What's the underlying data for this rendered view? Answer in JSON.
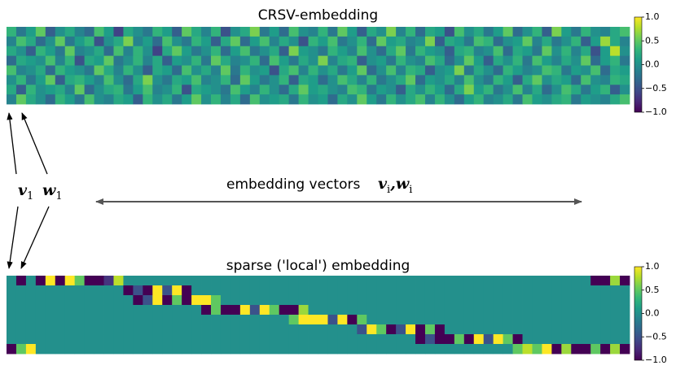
{
  "chart_data": [
    {
      "type": "heatmap",
      "title": "CRSV-embedding",
      "vlim": [
        -1,
        1
      ],
      "colormap": "viridis",
      "colorbar_ticks": [
        {
          "value": 1,
          "label": "1.0"
        },
        {
          "value": 0.5,
          "label": "0.5"
        },
        {
          "value": 0,
          "label": "0.0"
        },
        {
          "value": -0.5,
          "label": "−0.5"
        },
        {
          "value": -1,
          "label": "−1.0"
        }
      ],
      "values": [
        [
          0.3,
          -0.2,
          0.1,
          0.5,
          -0.4,
          0.0,
          0.2,
          -0.1,
          -0.3,
          0.4,
          0.1,
          -0.6,
          0.2,
          0.0,
          -0.2,
          0.3,
          0.1,
          -0.4,
          0.5,
          0.2,
          -0.1,
          0.3,
          -0.5,
          0.0,
          0.2,
          0.6,
          -0.2,
          0.1,
          -0.3,
          0.4,
          0.0,
          -0.1,
          0.3,
          -0.2,
          0.5,
          0.1,
          -0.4,
          0.2,
          0.0,
          0.6,
          -0.1,
          0.3,
          -0.3,
          0.2,
          0.1,
          -0.5,
          0.4,
          0.0,
          0.2,
          -0.2,
          0.1,
          0.5,
          -0.3,
          0.0,
          0.3,
          -0.4,
          0.6,
          0.1,
          -0.2,
          0.3,
          0.0,
          -0.1,
          0.2,
          0.4
        ],
        [
          -0.1,
          0.4,
          0.2,
          -0.3,
          0.0,
          0.5,
          -0.2,
          0.1,
          0.3,
          -0.5,
          0.0,
          0.2,
          0.6,
          -0.1,
          0.1,
          -0.3,
          0.4,
          0.0,
          -0.2,
          0.3,
          0.1,
          -0.4,
          0.2,
          0.5,
          -0.3,
          0.1,
          0.4,
          -0.1,
          0.2,
          0.0,
          -0.5,
          0.3,
          0.1,
          0.4,
          -0.2,
          0.0,
          0.3,
          -0.3,
          0.5,
          0.1,
          0.2,
          -0.1,
          0.0,
          0.6,
          -0.4,
          0.2,
          0.1,
          -0.2,
          0.4,
          0.3,
          -0.3,
          0.0,
          0.1,
          0.5,
          -0.1,
          0.2,
          -0.2,
          0.0,
          0.3,
          -0.4,
          0.1,
          0.7,
          0.2,
          -0.1
        ],
        [
          0.2,
          0.0,
          -0.4,
          0.3,
          0.1,
          -0.2,
          0.5,
          -0.1,
          0.0,
          0.2,
          -0.3,
          0.4,
          -0.1,
          0.3,
          0.0,
          -0.6,
          0.2,
          0.5,
          0.1,
          -0.2,
          0.0,
          0.3,
          -0.3,
          0.1,
          0.4,
          -0.2,
          0.0,
          0.2,
          -0.4,
          0.6,
          0.1,
          0.0,
          -0.2,
          0.3,
          0.1,
          -0.1,
          0.4,
          0.0,
          -0.3,
          0.2,
          0.5,
          -0.2,
          0.3,
          0.1,
          0.0,
          -0.4,
          0.2,
          0.3,
          -0.1,
          0.0,
          0.4,
          -0.3,
          0.2,
          0.1,
          -0.2,
          0.5,
          0.0,
          0.3,
          -0.1,
          0.2,
          -0.5,
          0.1,
          0.8,
          0.0
        ],
        [
          -0.3,
          0.2,
          0.1,
          0.0,
          0.4,
          -0.1,
          0.3,
          -0.5,
          0.2,
          0.1,
          0.5,
          -0.2,
          0.0,
          0.3,
          -0.1,
          0.2,
          -0.4,
          0.1,
          0.0,
          0.3,
          -0.2,
          0.5,
          0.2,
          -0.1,
          0.0,
          0.3,
          -0.3,
          0.4,
          0.1,
          -0.2,
          0.2,
          0.0,
          0.6,
          -0.1,
          0.2,
          0.3,
          -0.4,
          0.0,
          0.1,
          -0.2,
          0.3,
          0.0,
          -0.1,
          0.4,
          0.2,
          -0.3,
          0.0,
          0.5,
          0.1,
          -0.4,
          0.2,
          0.0,
          0.3,
          -0.2,
          0.4,
          0.1,
          -0.1,
          0.2,
          0.0,
          0.5,
          -0.3,
          0.1,
          0.3,
          -0.2
        ],
        [
          0.4,
          -0.1,
          0.0,
          0.2,
          -0.3,
          0.3,
          0.1,
          0.0,
          -0.2,
          0.5,
          0.2,
          -0.1,
          0.3,
          0.0,
          -0.4,
          0.2,
          0.1,
          -0.3,
          0.4,
          0.0,
          0.2,
          -0.1,
          0.5,
          -0.2,
          0.3,
          0.0,
          0.1,
          -0.5,
          0.2,
          0.4,
          -0.1,
          0.3,
          0.0,
          0.2,
          -0.2,
          0.1,
          0.5,
          -0.3,
          0.0,
          0.4,
          -0.1,
          0.3,
          0.2,
          -0.4,
          0.0,
          0.1,
          0.6,
          -0.2,
          0.2,
          0.0,
          -0.3,
          0.3,
          0.1,
          -0.1,
          0.0,
          0.4,
          0.3,
          -0.2,
          0.1,
          0.0,
          0.4,
          -0.3,
          0.2,
          0.1
        ],
        [
          0.0,
          0.3,
          -0.2,
          0.1,
          0.5,
          -0.4,
          0.2,
          0.3,
          0.1,
          -0.1,
          0.4,
          0.0,
          -0.3,
          0.2,
          0.6,
          0.0,
          -0.2,
          0.2,
          0.1,
          0.4,
          -0.1,
          0.0,
          0.3,
          -0.3,
          0.5,
          0.1,
          -0.2,
          0.0,
          0.3,
          -0.4,
          0.2,
          0.1,
          -0.3,
          0.0,
          0.4,
          0.2,
          -0.1,
          0.3,
          -0.2,
          0.0,
          0.2,
          0.5,
          -0.3,
          0.1,
          0.0,
          0.2,
          -0.1,
          0.4,
          0.0,
          -0.2,
          0.3,
          0.1,
          -0.4,
          0.2,
          0.5,
          0.0,
          0.2,
          0.1,
          -0.3,
          0.4,
          0.0,
          -0.1,
          0.3,
          0.2
        ],
        [
          0.2,
          -0.4,
          0.3,
          0.0,
          0.1,
          0.2,
          -0.1,
          0.5,
          -0.3,
          0.0,
          0.2,
          0.3,
          -0.2,
          0.1,
          0.4,
          -0.1,
          0.0,
          0.3,
          -0.5,
          0.2,
          0.1,
          0.0,
          -0.2,
          0.4,
          0.1,
          -0.1,
          0.3,
          0.0,
          -0.3,
          0.2,
          0.5,
          0.1,
          0.2,
          0.0,
          -0.1,
          0.4,
          0.3,
          -0.2,
          0.1,
          0.0,
          -0.4,
          0.2,
          0.0,
          0.3,
          0.1,
          -0.3,
          0.2,
          0.6,
          0.1,
          0.3,
          -0.2,
          0.0,
          0.4,
          -0.1,
          0.2,
          -0.3,
          0.0,
          0.4,
          0.2,
          -0.2,
          0.1,
          0.3,
          -0.4,
          0.0
        ],
        [
          -0.1,
          0.5,
          0.2,
          0.0,
          -0.3,
          0.3,
          0.1,
          -0.2,
          0.4,
          0.0,
          -0.1,
          0.2,
          0.1,
          -0.4,
          0.3,
          0.0,
          0.2,
          -0.2,
          0.1,
          0.5,
          0.0,
          0.3,
          -0.1,
          0.2,
          -0.3,
          0.4,
          0.0,
          0.1,
          0.2,
          -0.2,
          0.3,
          0.0,
          0.1,
          -0.3,
          0.2,
          0.0,
          0.5,
          0.1,
          -0.2,
          0.3,
          0.0,
          0.2,
          0.4,
          -0.1,
          0.3,
          0.0,
          -0.3,
          0.1,
          0.3,
          -0.1,
          0.0,
          0.2,
          -0.2,
          0.4,
          0.1,
          0.0,
          0.2,
          0.3,
          -0.2,
          0.1,
          0.0,
          -0.1,
          0.2,
          0.4
        ]
      ]
    },
    {
      "type": "heatmap",
      "title": "sparse ('local') embedding",
      "vlim": [
        -1,
        1
      ],
      "colormap": "viridis",
      "colorbar_ticks": [
        {
          "value": 1,
          "label": "1.0"
        },
        {
          "value": 0.5,
          "label": "0.5"
        },
        {
          "value": 0,
          "label": "0.0"
        },
        {
          "value": -0.5,
          "label": "−0.5"
        },
        {
          "value": -1,
          "label": "−1.0"
        }
      ],
      "values": [
        [
          0,
          -1,
          0,
          -1,
          1,
          -1,
          1,
          0.5,
          -1,
          -1,
          -0.7,
          0.8,
          0,
          0,
          0,
          0,
          0,
          0,
          0,
          0,
          0,
          0,
          0,
          0,
          0,
          0,
          0,
          0,
          0,
          0,
          0,
          0,
          0,
          0,
          0,
          0,
          0,
          0,
          0,
          0,
          0,
          0,
          0,
          0,
          0,
          0,
          0,
          0,
          0,
          0,
          0,
          0,
          0,
          0,
          0,
          0,
          0,
          0,
          0,
          0,
          -1,
          -1,
          0.7,
          -1
        ],
        [
          0,
          0,
          0,
          0,
          0,
          0,
          0,
          0,
          0,
          0,
          0,
          0,
          -1,
          -0.5,
          -1,
          1,
          -0.5,
          1,
          -1,
          0,
          0,
          0,
          0,
          0,
          0,
          0,
          0,
          0,
          0,
          0,
          0,
          0,
          0,
          0,
          0,
          0,
          0,
          0,
          0,
          0,
          0,
          0,
          0,
          0,
          0,
          0,
          0,
          0,
          0,
          0,
          0,
          0,
          0,
          0,
          0,
          0,
          0,
          0,
          0,
          0,
          0,
          0,
          0,
          0
        ],
        [
          0,
          0,
          0,
          0,
          0,
          0,
          0,
          0,
          0,
          0,
          0,
          0,
          0,
          -1,
          -0.5,
          1,
          -1,
          0.5,
          -1,
          1,
          1,
          0.5,
          0,
          0,
          0,
          0,
          0,
          0,
          0,
          0,
          0,
          0,
          0,
          0,
          0,
          0,
          0,
          0,
          0,
          0,
          0,
          0,
          0,
          0,
          0,
          0,
          0,
          0,
          0,
          0,
          0,
          0,
          0,
          0,
          0,
          0,
          0,
          0,
          0,
          0,
          0,
          0,
          0,
          0
        ],
        [
          0,
          0,
          0,
          0,
          0,
          0,
          0,
          0,
          0,
          0,
          0,
          0,
          0,
          0,
          0,
          0,
          0,
          0,
          0,
          0,
          -1,
          0.5,
          -1,
          -1,
          1,
          -0.5,
          1,
          0.5,
          -1,
          -1,
          0.7,
          0,
          0,
          0,
          0,
          0,
          0,
          0,
          0,
          0,
          0,
          0,
          0,
          0,
          0,
          0,
          0,
          0,
          0,
          0,
          0,
          0,
          0,
          0,
          0,
          0,
          0,
          0,
          0,
          0,
          0,
          0,
          0,
          0
        ],
        [
          0,
          0,
          0,
          0,
          0,
          0,
          0,
          0,
          0,
          0,
          0,
          0,
          0,
          0,
          0,
          0,
          0,
          0,
          0,
          0,
          0,
          0,
          0,
          0,
          0,
          0,
          0,
          0,
          0,
          0.5,
          1,
          1,
          1,
          -0.5,
          1,
          -1,
          0.5,
          0,
          0,
          0,
          0,
          0,
          0,
          0,
          0,
          0,
          0,
          0,
          0,
          0,
          0,
          0,
          0,
          0,
          0,
          0,
          0,
          0,
          0,
          0,
          0,
          0,
          0,
          0
        ],
        [
          0,
          0,
          0,
          0,
          0,
          0,
          0,
          0,
          0,
          0,
          0,
          0,
          0,
          0,
          0,
          0,
          0,
          0,
          0,
          0,
          0,
          0,
          0,
          0,
          0,
          0,
          0,
          0,
          0,
          0,
          0,
          0,
          0,
          0,
          0,
          0,
          -0.5,
          1,
          0.5,
          -1,
          -0.5,
          1,
          -1,
          0.5,
          -1,
          0,
          0,
          0,
          0,
          0,
          0,
          0,
          0,
          0,
          0,
          0,
          0,
          0,
          0,
          0,
          0,
          0,
          0,
          0
        ],
        [
          0,
          0,
          0,
          0,
          0,
          0,
          0,
          0,
          0,
          0,
          0,
          0,
          0,
          0,
          0,
          0,
          0,
          0,
          0,
          0,
          0,
          0,
          0,
          0,
          0,
          0,
          0,
          0,
          0,
          0,
          0,
          0,
          0,
          0,
          0,
          0,
          0,
          0,
          0,
          0,
          0,
          0,
          -1,
          -0.5,
          -1,
          -1,
          0.5,
          -1,
          1,
          -0.5,
          1,
          0.5,
          -1,
          0,
          0,
          0,
          0,
          0,
          0,
          0,
          0,
          0,
          0,
          0
        ],
        [
          -1,
          0.5,
          1,
          0,
          0,
          0,
          0,
          0,
          0,
          0,
          0,
          0,
          0,
          0,
          0,
          0,
          0,
          0,
          0,
          0,
          0,
          0,
          0,
          0,
          0,
          0,
          0,
          0,
          0,
          0,
          0,
          0,
          0,
          0,
          0,
          0,
          0,
          0,
          0,
          0,
          0,
          0,
          0,
          0,
          0,
          0,
          0,
          0,
          0,
          0,
          0,
          0,
          0.5,
          0.8,
          0.5,
          1,
          -1,
          0.7,
          -1,
          -1,
          0.5,
          -1,
          0.7,
          -1
        ]
      ]
    }
  ],
  "annotations": {
    "text": "embedding vectors",
    "separator": ",",
    "symbols": [
      {
        "base": "v",
        "sub": "i"
      },
      {
        "base": "w",
        "sub": "i"
      }
    ],
    "first": [
      {
        "base": "v",
        "sub": "1"
      },
      {
        "base": "w",
        "sub": "1"
      }
    ]
  }
}
